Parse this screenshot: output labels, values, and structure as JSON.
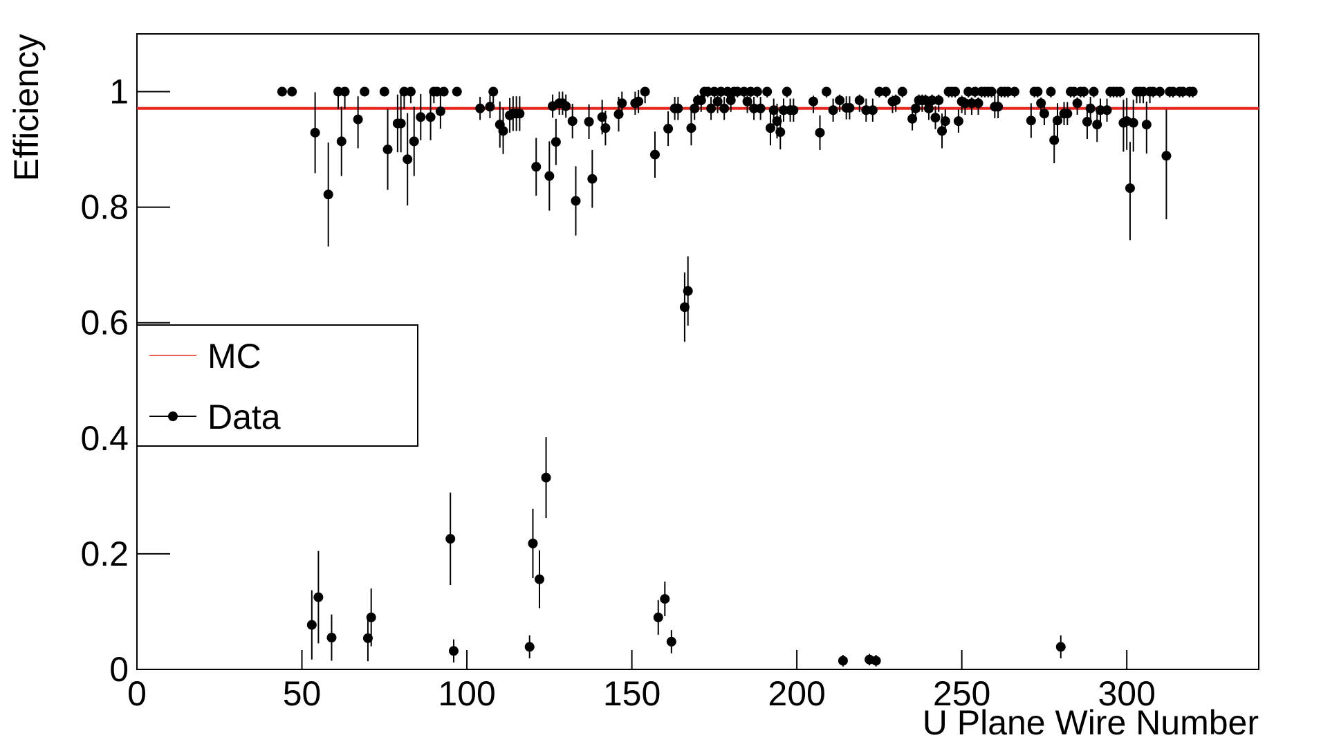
{
  "chart_data": {
    "type": "scatter",
    "xlabel": "U Plane Wire Number",
    "ylabel": "Efficiency",
    "xlim": [
      0,
      340
    ],
    "ylim": [
      0,
      1.1
    ],
    "xticks": [
      0,
      50,
      100,
      150,
      200,
      250,
      300
    ],
    "yticks": [
      0,
      0.2,
      0.4,
      0.6,
      0.8,
      1
    ],
    "legend": "left",
    "series": [
      {
        "name": "MC",
        "color": "#e8281e",
        "value": 0.971
      },
      {
        "name": "Data",
        "color": "#000000",
        "x": [
          44,
          47,
          53,
          54,
          55,
          58,
          59,
          61,
          62,
          63,
          67,
          69,
          70,
          71,
          75,
          76,
          79,
          80,
          81,
          82,
          83,
          84,
          86,
          89,
          90,
          91,
          92,
          93,
          95,
          96,
          97,
          104,
          107,
          108,
          110,
          111,
          113,
          114,
          115,
          116,
          119,
          120,
          121,
          122,
          124,
          125,
          126,
          127,
          128,
          129,
          130,
          132,
          133,
          137,
          138,
          141,
          142,
          146,
          147,
          151,
          152,
          154,
          157,
          158,
          160,
          161,
          162,
          163,
          164,
          166,
          167,
          168,
          169,
          170,
          171,
          172,
          173,
          174,
          175,
          176,
          177,
          178,
          179,
          180,
          181,
          182,
          184,
          185,
          186,
          187,
          188,
          189,
          191,
          192,
          193,
          194,
          195,
          196,
          197,
          198,
          199,
          205,
          207,
          209,
          211,
          213,
          214,
          215,
          216,
          219,
          221,
          222,
          223,
          224,
          225,
          227,
          229,
          230,
          232,
          235,
          236,
          237,
          238,
          239,
          240,
          241,
          242,
          243,
          244,
          245,
          246,
          247,
          248,
          249,
          250,
          251,
          252,
          253,
          254,
          255,
          256,
          257,
          258,
          259,
          260,
          261,
          262,
          263,
          264,
          266,
          271,
          272,
          273,
          274,
          275,
          277,
          278,
          279,
          280,
          281,
          282,
          283,
          284,
          285,
          286,
          287,
          288,
          289,
          290,
          291,
          292,
          294,
          295,
          296,
          297,
          298,
          299,
          300,
          301,
          302,
          303,
          304,
          305,
          306,
          307,
          308,
          310,
          312,
          313,
          314,
          316,
          317,
          319,
          320
        ],
        "values": [
          1,
          1,
          0.077,
          0.929,
          0.125,
          0.822,
          0.055,
          1,
          0.914,
          1,
          0.952,
          1,
          0.054,
          0.09,
          1,
          0.9,
          0.945,
          0.945,
          1,
          0.883,
          1,
          0.914,
          0.956,
          0.956,
          1,
          1,
          0.966,
          1,
          0.226,
          0.032,
          1,
          0.971,
          0.974,
          1,
          0.943,
          0.932,
          0.959,
          0.962,
          0.962,
          0.962,
          0.039,
          0.218,
          0.87,
          0.156,
          0.332,
          0.854,
          0.975,
          0.913,
          0.98,
          0.98,
          0.975,
          0.949,
          0.811,
          0.948,
          0.849,
          0.956,
          0.937,
          0.961,
          0.98,
          0.98,
          0.983,
          1,
          0.891,
          0.09,
          0.122,
          0.936,
          0.048,
          0.971,
          0.971,
          0.627,
          0.655,
          0.937,
          0.971,
          0.985,
          0.985,
          1,
          1,
          0.971,
          1,
          0.983,
          1,
          0.971,
          1,
          0.985,
          1,
          1,
          1,
          0.983,
          1,
          0.971,
          1,
          0.971,
          1,
          0.937,
          0.968,
          0.949,
          0.93,
          0.968,
          1,
          0.968,
          0.968,
          0.983,
          0.929,
          1,
          0.968,
          0.985,
          0.015,
          0.972,
          0.972,
          0.985,
          0.968,
          0.017,
          0.968,
          0.015,
          1,
          1,
          0.983,
          0.985,
          1,
          0.953,
          0.971,
          0.985,
          0.985,
          0.985,
          0.971,
          0.985,
          0.955,
          0.985,
          0.932,
          0.949,
          1,
          1,
          1,
          0.949,
          0.983,
          0.98,
          1,
          0.98,
          1,
          0.98,
          1,
          1,
          1,
          1,
          0.974,
          0.974,
          1,
          1,
          1,
          1,
          0.95,
          1,
          1,
          0.98,
          0.962,
          1,
          0.916,
          0.95,
          0.039,
          0.962,
          0.962,
          1,
          1,
          0.98,
          1,
          1,
          0.948,
          0.971,
          1,
          0.943,
          0.968,
          0.968,
          1,
          1,
          1,
          1,
          0.946,
          0.949,
          0.833,
          0.946,
          1,
          1,
          1,
          0.943,
          1,
          1,
          1,
          0.889,
          1,
          1,
          1,
          1,
          1,
          1
        ],
        "errors_low": [
          0,
          0,
          0.06,
          0.07,
          0.08,
          0.09,
          0.04,
          0.03,
          0.06,
          0.03,
          0.05,
          0,
          0.04,
          0.05,
          0,
          0.07,
          0.05,
          0.05,
          0.03,
          0.08,
          0.02,
          0.06,
          0.04,
          0.04,
          0.02,
          0,
          0.03,
          0,
          0.08,
          0.02,
          0,
          0.02,
          0.02,
          0.02,
          0.04,
          0.04,
          0.03,
          0.03,
          0.03,
          0.03,
          0.02,
          0.06,
          0.05,
          0.05,
          0.07,
          0.06,
          0.02,
          0.04,
          0.02,
          0.02,
          0.02,
          0.03,
          0.06,
          0.03,
          0.05,
          0.03,
          0.03,
          0.03,
          0.02,
          0.02,
          0.02,
          0.02,
          0.04,
          0.03,
          0.03,
          0.03,
          0.02,
          0.02,
          0.02,
          0.06,
          0.06,
          0.03,
          0.02,
          0.02,
          0.02,
          0.01,
          0.01,
          0.02,
          0.01,
          0.02,
          0.01,
          0.02,
          0.01,
          0.02,
          0.01,
          0.01,
          0.01,
          0.02,
          0.01,
          0.02,
          0.01,
          0.02,
          0.01,
          0.03,
          0.02,
          0.03,
          0.03,
          0.02,
          0.01,
          0.02,
          0.02,
          0.02,
          0.03,
          0.01,
          0.02,
          0.02,
          0.01,
          0.02,
          0.02,
          0.02,
          0.02,
          0.01,
          0.02,
          0.01,
          0.01,
          0.01,
          0.02,
          0.02,
          0.01,
          0.02,
          0.02,
          0.02,
          0.02,
          0.02,
          0.02,
          0.02,
          0.02,
          0.02,
          0.03,
          0.02,
          0.01,
          0.01,
          0.01,
          0.02,
          0.02,
          0.02,
          0.01,
          0.02,
          0.01,
          0.02,
          0.01,
          0.01,
          0.01,
          0.01,
          0.02,
          0.02,
          0.01,
          0.01,
          0.01,
          0.01,
          0.03,
          0.01,
          0.01,
          0.02,
          0.02,
          0.01,
          0.04,
          0.03,
          0.02,
          0.02,
          0.02,
          0.01,
          0.01,
          0.02,
          0.01,
          0.01,
          0.03,
          0.02,
          0.01,
          0.03,
          0.02,
          0.02,
          0.01,
          0.01,
          0.01,
          0.01,
          0.05,
          0.05,
          0.09,
          0.05,
          0.02,
          0.02,
          0.02,
          0.05,
          0.02,
          0.01,
          0.01,
          0.11,
          0.01,
          0.01,
          0.01,
          0.01,
          0.01,
          0.01
        ],
        "errors_high": [
          0,
          0,
          0.06,
          0.07,
          0.08,
          0.09,
          0.04,
          0,
          0.06,
          0,
          0.04,
          0,
          0.04,
          0.05,
          0,
          0.07,
          0.05,
          0.05,
          0,
          0.08,
          0,
          0.06,
          0.04,
          0.04,
          0,
          0,
          0.03,
          0,
          0.08,
          0.02,
          0,
          0.02,
          0.02,
          0,
          0.04,
          0.04,
          0.03,
          0.03,
          0.03,
          0.03,
          0.02,
          0.06,
          0.05,
          0.05,
          0.07,
          0.06,
          0.02,
          0.04,
          0.02,
          0.02,
          0.02,
          0.03,
          0.06,
          0.03,
          0.05,
          0.03,
          0.03,
          0.03,
          0.02,
          0.02,
          0.02,
          0,
          0.04,
          0.03,
          0.03,
          0.03,
          0.02,
          0.02,
          0.02,
          0.06,
          0.06,
          0.03,
          0.02,
          0.01,
          0.01,
          0,
          0,
          0.02,
          0,
          0.01,
          0,
          0.02,
          0,
          0.01,
          0,
          0,
          0,
          0.01,
          0,
          0.02,
          0,
          0.02,
          0,
          0.03,
          0.02,
          0.03,
          0.03,
          0.02,
          0,
          0.02,
          0.02,
          0.01,
          0.03,
          0,
          0.02,
          0.01,
          0.01,
          0.02,
          0.02,
          0.01,
          0.02,
          0.01,
          0.02,
          0.01,
          0,
          0,
          0.01,
          0.01,
          0,
          0.02,
          0.02,
          0.01,
          0.01,
          0.01,
          0.02,
          0.01,
          0.02,
          0.01,
          0.03,
          0.02,
          0,
          0,
          0,
          0.02,
          0.01,
          0.01,
          0,
          0.01,
          0,
          0.01,
          0,
          0,
          0,
          0,
          0.02,
          0.02,
          0,
          0,
          0,
          0,
          0.03,
          0,
          0,
          0.01,
          0.02,
          0,
          0.04,
          0.03,
          0.02,
          0.02,
          0.02,
          0,
          0,
          0.01,
          0,
          0,
          0.03,
          0.02,
          0,
          0.03,
          0.02,
          0.02,
          0,
          0,
          0,
          0,
          0.04,
          0.04,
          0.08,
          0.04,
          0,
          0,
          0,
          0.04,
          0,
          0,
          0,
          0.08,
          0,
          0,
          0,
          0,
          0,
          0
        ]
      }
    ]
  }
}
